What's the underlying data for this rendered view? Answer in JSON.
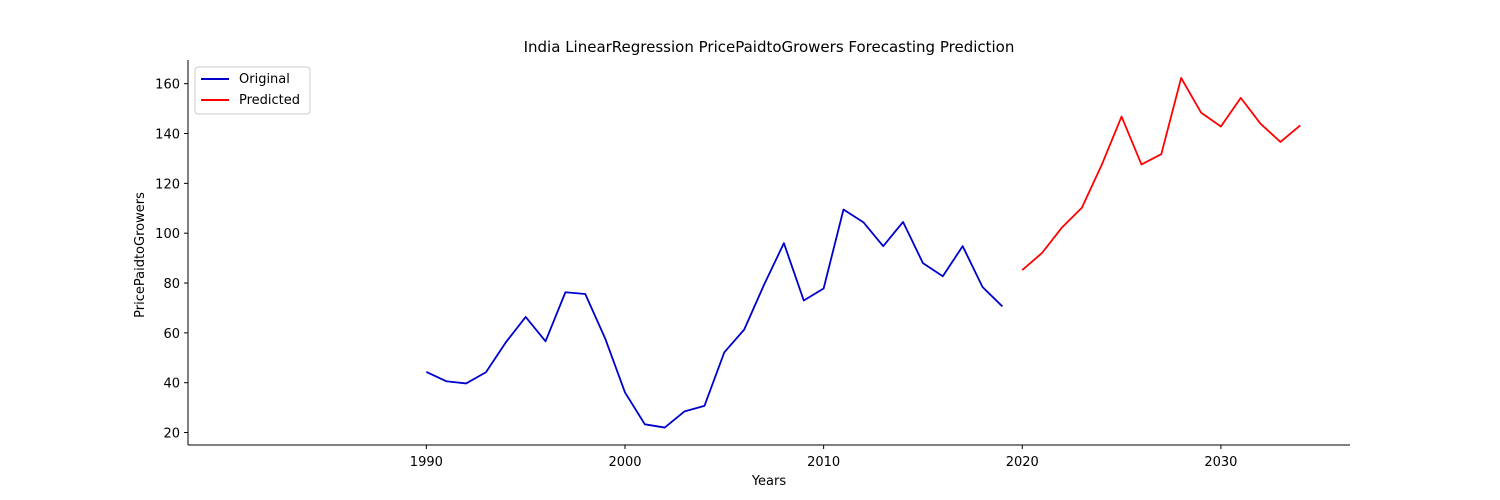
{
  "chart_data": {
    "type": "line",
    "title": "India LinearRegression PricePaidtoGrowers Forecasting Prediction",
    "xlabel": "Years",
    "ylabel": "PricePaidtoGrowers",
    "xlim": [
      1978,
      2036.5
    ],
    "ylim": [
      15,
      169.5
    ],
    "xticks": [
      1990,
      2000,
      2010,
      2020,
      2030
    ],
    "yticks": [
      20,
      40,
      60,
      80,
      100,
      120,
      140,
      160
    ],
    "grid": false,
    "legend_position": "upper-left",
    "series": [
      {
        "name": "Original",
        "color": "#0000cc",
        "x": [
          1990,
          1991,
          1992,
          1993,
          1994,
          1995,
          1996,
          1997,
          1998,
          1999,
          2000,
          2001,
          2002,
          2003,
          2004,
          2005,
          2006,
          2007,
          2008,
          2009,
          2010,
          2011,
          2012,
          2013,
          2014,
          2015,
          2016,
          2017,
          2018,
          2019
        ],
        "y": [
          44.3,
          40.6,
          39.7,
          44.2,
          56.2,
          66.4,
          56.6,
          76.3,
          75.6,
          57.8,
          36.1,
          23.3,
          22.0,
          28.5,
          30.7,
          52.2,
          61.3,
          79.3,
          96.0,
          73.0,
          77.8,
          109.5,
          104.4,
          94.8,
          104.5,
          88.0,
          82.7,
          94.8,
          78.4,
          70.6
        ]
      },
      {
        "name": "Predicted",
        "color": "#ff0000",
        "x": [
          2020,
          2021,
          2022,
          2023,
          2024,
          2025,
          2026,
          2027,
          2028,
          2029,
          2030,
          2031,
          2032,
          2033,
          2034
        ],
        "y": [
          85.2,
          92.1,
          102.3,
          110.2,
          127.4,
          146.8,
          127.6,
          131.7,
          162.3,
          148.4,
          142.8,
          154.3,
          143.9,
          136.6,
          143.3
        ]
      }
    ]
  }
}
